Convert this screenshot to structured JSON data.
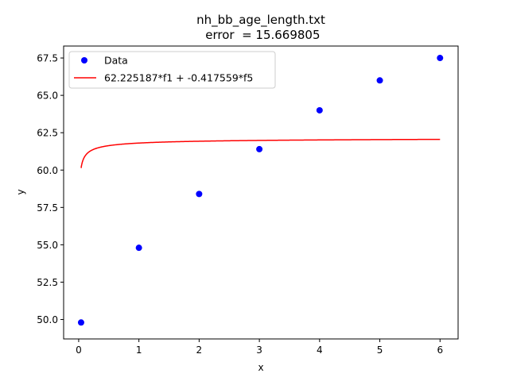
{
  "chart_data": {
    "type": "scatter",
    "title_line1": "nh_bb_age_length.txt",
    "title_line2": " error  = 15.669805",
    "xlabel": "x",
    "ylabel": "y",
    "xlim": [
      -0.25,
      6.3
    ],
    "ylim": [
      48.7,
      68.3
    ],
    "xticks": [
      0,
      1,
      2,
      3,
      4,
      5,
      6
    ],
    "xtick_labels": [
      "0",
      "1",
      "2",
      "3",
      "4",
      "5",
      "6"
    ],
    "yticks": [
      50.0,
      52.5,
      55.0,
      57.5,
      60.0,
      62.5,
      65.0,
      67.5
    ],
    "ytick_labels": [
      "50.0",
      "52.5",
      "55.0",
      "57.5",
      "60.0",
      "62.5",
      "65.0",
      "67.5"
    ],
    "grid": false,
    "legend_position": "top-left",
    "series": [
      {
        "name": "Data",
        "kind": "scatter",
        "color": "#0000ff",
        "x": [
          0.04,
          1,
          2,
          3,
          4,
          5,
          6
        ],
        "y": [
          49.8,
          54.8,
          58.4,
          61.4,
          64.0,
          66.0,
          67.5
        ]
      },
      {
        "name": "62.225187*f1 + -0.417559*f5",
        "kind": "line",
        "color": "#ff0000",
        "model": {
          "a": 62.225187,
          "b": -0.417559,
          "x_start": 0.04,
          "x_end": 6
        }
      }
    ]
  }
}
